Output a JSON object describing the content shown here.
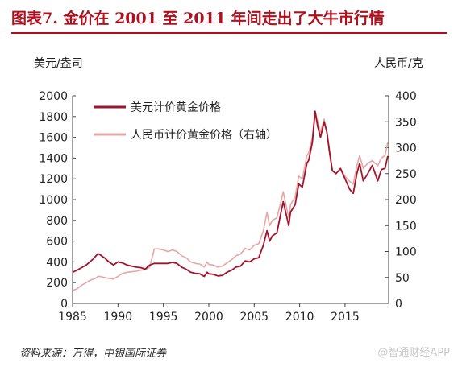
{
  "header": {
    "title": "图表7. 金价在 2001 至 2011 年间走出了大牛市行情"
  },
  "footer": {
    "source": "资料来源：万得，中银国际证券"
  },
  "watermark": "@智通财经APP",
  "chart_data": {
    "type": "line",
    "y_left": {
      "unit": "美元/盎司",
      "lim": [
        0,
        2000
      ],
      "ticks": [
        0,
        200,
        400,
        600,
        800,
        1000,
        1200,
        1400,
        1600,
        1800,
        2000
      ]
    },
    "y_right": {
      "unit": "人民币/克",
      "lim": [
        0,
        400
      ],
      "ticks": [
        0,
        50,
        100,
        150,
        200,
        250,
        300,
        350,
        400
      ]
    },
    "x": {
      "lim": [
        1985,
        2019.8
      ],
      "ticks": [
        1985,
        1990,
        1995,
        2000,
        2005,
        2010,
        2015
      ]
    },
    "legend": {
      "position": "top-left"
    },
    "series": [
      {
        "name": "美元计价黄金价格",
        "axis": "left",
        "color": "#a3132a",
        "points": [
          [
            1985.0,
            300
          ],
          [
            1985.5,
            320
          ],
          [
            1986.0,
            345
          ],
          [
            1986.5,
            370
          ],
          [
            1986.9,
            400
          ],
          [
            1987.3,
            430
          ],
          [
            1987.8,
            480
          ],
          [
            1988.0,
            470
          ],
          [
            1988.5,
            440
          ],
          [
            1989.0,
            400
          ],
          [
            1989.5,
            370
          ],
          [
            1990.0,
            400
          ],
          [
            1990.5,
            390
          ],
          [
            1991.0,
            370
          ],
          [
            1991.5,
            360
          ],
          [
            1992.0,
            350
          ],
          [
            1992.5,
            345
          ],
          [
            1993.0,
            330
          ],
          [
            1993.5,
            370
          ],
          [
            1994.0,
            385
          ],
          [
            1994.5,
            385
          ],
          [
            1995.0,
            385
          ],
          [
            1995.5,
            385
          ],
          [
            1996.0,
            395
          ],
          [
            1996.5,
            385
          ],
          [
            1997.0,
            350
          ],
          [
            1997.5,
            330
          ],
          [
            1998.0,
            300
          ],
          [
            1998.5,
            290
          ],
          [
            1999.0,
            285
          ],
          [
            1999.5,
            260
          ],
          [
            1999.8,
            300
          ],
          [
            2000.0,
            285
          ],
          [
            2000.5,
            280
          ],
          [
            2001.0,
            265
          ],
          [
            2001.5,
            270
          ],
          [
            2002.0,
            300
          ],
          [
            2002.5,
            320
          ],
          [
            2003.0,
            350
          ],
          [
            2003.5,
            360
          ],
          [
            2004.0,
            410
          ],
          [
            2004.5,
            400
          ],
          [
            2005.0,
            430
          ],
          [
            2005.5,
            440
          ],
          [
            2006.0,
            560
          ],
          [
            2006.4,
            700
          ],
          [
            2006.7,
            600
          ],
          [
            2007.0,
            650
          ],
          [
            2007.5,
            680
          ],
          [
            2008.0,
            900
          ],
          [
            2008.2,
            980
          ],
          [
            2008.8,
            750
          ],
          [
            2009.0,
            880
          ],
          [
            2009.5,
            950
          ],
          [
            2009.9,
            1150
          ],
          [
            2010.3,
            1120
          ],
          [
            2010.8,
            1350
          ],
          [
            2011.0,
            1380
          ],
          [
            2011.4,
            1550
          ],
          [
            2011.7,
            1850
          ],
          [
            2012.0,
            1700
          ],
          [
            2012.3,
            1600
          ],
          [
            2012.7,
            1750
          ],
          [
            2013.0,
            1650
          ],
          [
            2013.3,
            1450
          ],
          [
            2013.6,
            1280
          ],
          [
            2014.0,
            1250
          ],
          [
            2014.5,
            1300
          ],
          [
            2015.0,
            1200
          ],
          [
            2015.5,
            1100
          ],
          [
            2015.9,
            1060
          ],
          [
            2016.3,
            1250
          ],
          [
            2016.6,
            1350
          ],
          [
            2017.0,
            1180
          ],
          [
            2017.5,
            1250
          ],
          [
            2018.0,
            1330
          ],
          [
            2018.6,
            1180
          ],
          [
            2019.0,
            1290
          ],
          [
            2019.4,
            1300
          ],
          [
            2019.7,
            1420
          ]
        ]
      },
      {
        "name": "人民币计价黄金价格（右轴）",
        "axis": "right",
        "color": "#e6a6a6",
        "points": [
          [
            1985.0,
            25
          ],
          [
            1985.5,
            28
          ],
          [
            1986.0,
            35
          ],
          [
            1986.5,
            40
          ],
          [
            1987.0,
            45
          ],
          [
            1987.5,
            48
          ],
          [
            1987.8,
            52
          ],
          [
            1988.0,
            52
          ],
          [
            1988.5,
            50
          ],
          [
            1989.0,
            48
          ],
          [
            1989.5,
            47
          ],
          [
            1990.0,
            52
          ],
          [
            1990.5,
            58
          ],
          [
            1991.0,
            60
          ],
          [
            1991.5,
            61
          ],
          [
            1992.0,
            62
          ],
          [
            1992.5,
            64
          ],
          [
            1993.0,
            65
          ],
          [
            1993.5,
            70
          ],
          [
            1994.0,
            105
          ],
          [
            1994.5,
            105
          ],
          [
            1995.0,
            103
          ],
          [
            1995.5,
            100
          ],
          [
            1996.0,
            103
          ],
          [
            1996.5,
            100
          ],
          [
            1997.0,
            92
          ],
          [
            1997.5,
            88
          ],
          [
            1998.0,
            80
          ],
          [
            1998.5,
            77
          ],
          [
            1999.0,
            76
          ],
          [
            1999.5,
            70
          ],
          [
            1999.8,
            80
          ],
          [
            2000.0,
            75
          ],
          [
            2000.5,
            74
          ],
          [
            2001.0,
            70
          ],
          [
            2001.5,
            72
          ],
          [
            2002.0,
            78
          ],
          [
            2002.5,
            84
          ],
          [
            2003.0,
            92
          ],
          [
            2003.5,
            95
          ],
          [
            2004.0,
            106
          ],
          [
            2004.5,
            103
          ],
          [
            2005.0,
            112
          ],
          [
            2005.5,
            115
          ],
          [
            2006.0,
            140
          ],
          [
            2006.4,
            175
          ],
          [
            2006.7,
            150
          ],
          [
            2007.0,
            160
          ],
          [
            2007.5,
            165
          ],
          [
            2008.0,
            200
          ],
          [
            2008.2,
            215
          ],
          [
            2008.8,
            165
          ],
          [
            2009.0,
            190
          ],
          [
            2009.5,
            205
          ],
          [
            2009.9,
            245
          ],
          [
            2010.3,
            240
          ],
          [
            2010.8,
            285
          ],
          [
            2011.0,
            290
          ],
          [
            2011.4,
            320
          ],
          [
            2011.7,
            370
          ],
          [
            2012.0,
            350
          ],
          [
            2012.3,
            330
          ],
          [
            2012.7,
            355
          ],
          [
            2013.0,
            330
          ],
          [
            2013.3,
            295
          ],
          [
            2013.6,
            255
          ],
          [
            2014.0,
            250
          ],
          [
            2014.5,
            260
          ],
          [
            2015.0,
            245
          ],
          [
            2015.5,
            235
          ],
          [
            2015.9,
            230
          ],
          [
            2016.3,
            265
          ],
          [
            2016.6,
            285
          ],
          [
            2017.0,
            260
          ],
          [
            2017.5,
            270
          ],
          [
            2018.0,
            275
          ],
          [
            2018.6,
            265
          ],
          [
            2019.0,
            280
          ],
          [
            2019.4,
            285
          ],
          [
            2019.7,
            310
          ]
        ]
      }
    ]
  }
}
